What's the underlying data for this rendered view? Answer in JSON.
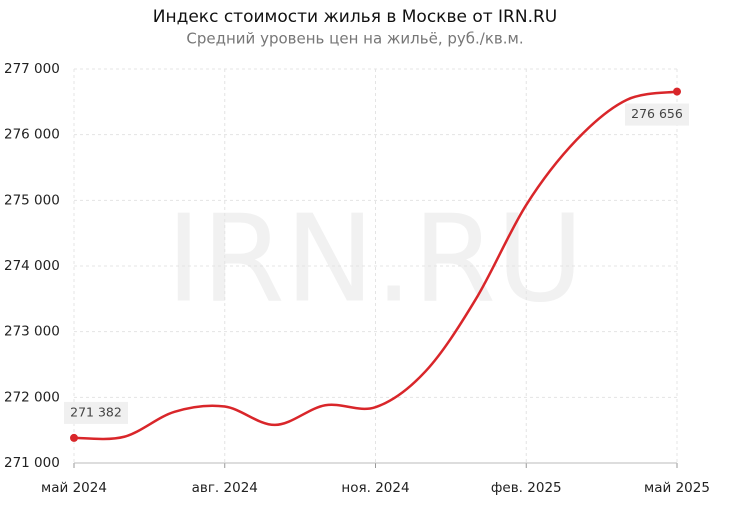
{
  "chart_data": {
    "type": "line",
    "title": "Индекс стоимости жилья в Москве от IRN.RU",
    "subtitle": "Средний уровень цен на жильё, руб./кв.м.",
    "watermark": "IRN.RU",
    "categories": [
      "май 2024",
      null,
      null,
      "авг. 2024",
      null,
      null,
      "ноя. 2024",
      null,
      null,
      "фев. 2025",
      null,
      null,
      "май 2025"
    ],
    "series": [
      {
        "name": "Индекс",
        "color": "#d9262a",
        "values": [
          271382,
          271400,
          271780,
          271860,
          271580,
          271880,
          271850,
          272400,
          273500,
          274930,
          275920,
          276530,
          276656
        ],
        "value_labels": [
          "271 382",
          null,
          null,
          null,
          null,
          null,
          null,
          null,
          null,
          null,
          null,
          null,
          "276 656"
        ]
      }
    ],
    "ylim": [
      271000,
      277000
    ],
    "yticks": [
      {
        "value": 271000,
        "label": "271 000"
      },
      {
        "value": 272000,
        "label": "272 000"
      },
      {
        "value": 273000,
        "label": "273 000"
      },
      {
        "value": 274000,
        "label": "274 000"
      },
      {
        "value": 275000,
        "label": "275 000"
      },
      {
        "value": 276000,
        "label": "276 000"
      },
      {
        "value": 277000,
        "label": "277 000"
      }
    ],
    "grid": true
  }
}
